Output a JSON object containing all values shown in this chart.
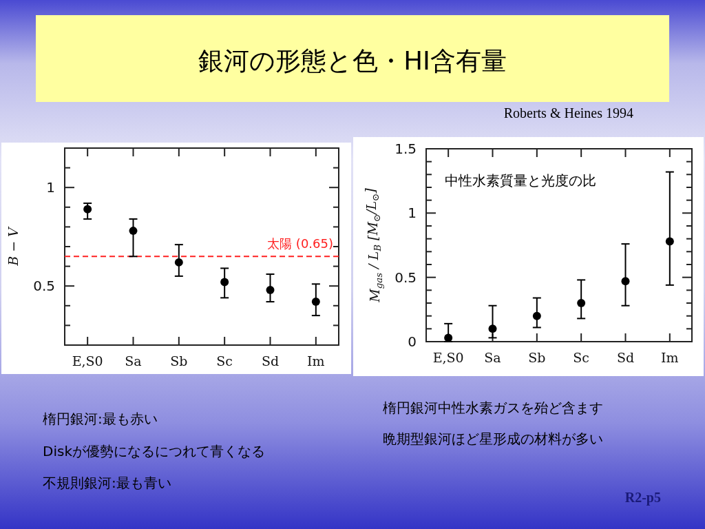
{
  "chart_data": [
    {
      "type": "scatter",
      "title": "銀河の形態と色・HI含有量",
      "ylabel": "B − V",
      "categories": [
        "E,S0",
        "Sa",
        "Sb",
        "Sc",
        "Sd",
        "Im"
      ],
      "series": [
        {
          "color": "#000000",
          "values": [
            0.89,
            0.78,
            0.62,
            0.52,
            0.48,
            0.42
          ],
          "errors": [
            [
              0.84,
              0.92
            ],
            [
              0.65,
              0.84
            ],
            [
              0.55,
              0.71
            ],
            [
              0.44,
              0.59
            ],
            [
              0.42,
              0.56
            ],
            [
              0.35,
              0.51
            ]
          ]
        }
      ],
      "ylim": [
        0.2,
        1.2
      ],
      "yticks": [
        {
          "value": 0.3,
          "label": null
        },
        {
          "value": 0.4,
          "label": null
        },
        0.5,
        {
          "value": 0.6,
          "label": null
        },
        {
          "value": 0.7,
          "label": null
        },
        {
          "value": 0.8,
          "label": null
        },
        {
          "value": 0.9,
          "label": null
        },
        1,
        {
          "value": 1.1,
          "label": null
        }
      ],
      "marker": "circle",
      "ref_lines": [
        {
          "axis": "y",
          "value": 0.65,
          "label": "太陽 (0.65)",
          "color": "#ff2020",
          "line_style": "dashed"
        }
      ],
      "annotations": [
        "楕円銀河:最も赤い",
        "Diskが優勢になるにつれて青くなる",
        "不規則銀河:最も青い"
      ]
    },
    {
      "type": "scatter",
      "ylabel": "M$_{gas}$ / L$_{B}$  [M$_{⊙}$/L$_{⊙}$]",
      "categories": [
        "E,S0",
        "Sa",
        "Sb",
        "Sc",
        "Sd",
        "Im"
      ],
      "series": [
        {
          "color": "#000000",
          "values": [
            0.03,
            0.1,
            0.2,
            0.3,
            0.47,
            0.78
          ],
          "errors": [
            [
              0,
              0.14
            ],
            [
              0.03,
              0.28
            ],
            [
              0.11,
              0.34
            ],
            [
              0.18,
              0.48
            ],
            [
              0.28,
              0.76
            ],
            [
              0.44,
              1.32
            ]
          ]
        }
      ],
      "ylim": [
        0,
        1.5
      ],
      "yticks": [
        0,
        {
          "value": 0.1,
          "label": null
        },
        {
          "value": 0.2,
          "label": null
        },
        {
          "value": 0.3,
          "label": null
        },
        {
          "value": 0.4,
          "label": null
        },
        0.5,
        {
          "value": 0.6,
          "label": null
        },
        {
          "value": 0.7,
          "label": null
        },
        {
          "value": 0.8,
          "label": null
        },
        {
          "value": 0.9,
          "label": null
        },
        1,
        {
          "value": 1.1,
          "label": null
        },
        {
          "value": 1.2,
          "label": null
        },
        {
          "value": 1.3,
          "label": null
        },
        {
          "value": 1.4,
          "label": null
        },
        1.5
      ],
      "marker": "circle",
      "annotations": [
        "中性水素質量と光度の比",
        "Roberts & Heines 1994",
        "楕円銀河中性水素ガスを殆ど含ます",
        "晩期型銀河ほど星形成の材料が多い",
        "R2-p5"
      ]
    }
  ]
}
